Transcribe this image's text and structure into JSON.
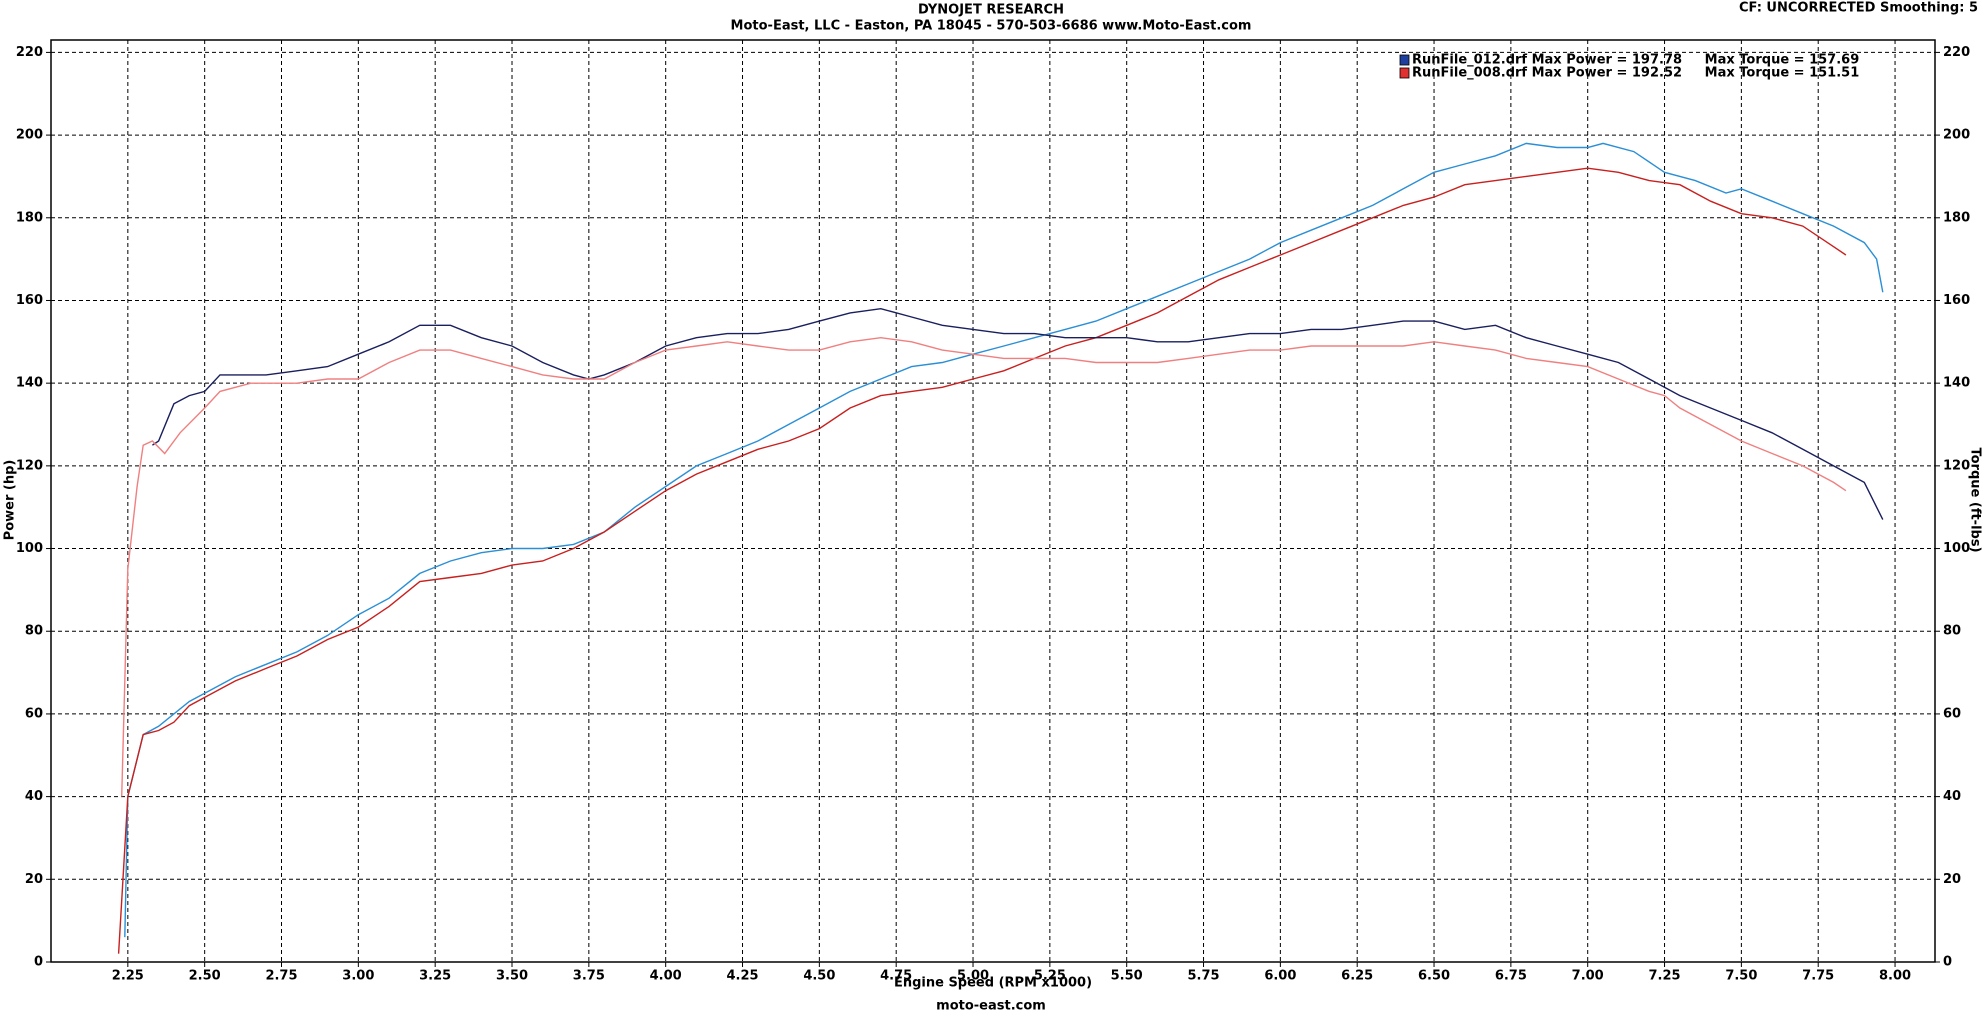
{
  "chart_data": {
    "type": "line",
    "title": "DYNOJET RESEARCH",
    "subtitle": "Moto-East, LLC - Easton, PA 18045 - 570-503-6686 www.Moto-East.com",
    "corner_note": "CF: UNCORRECTED  Smoothing: 5",
    "footer": "moto-east.com",
    "x_label": "Engine Speed (RPM x1000)",
    "y_label": "Power (hp)",
    "y2_label": "Torque (ft-lbs)",
    "legend": [
      {
        "text": "RunFile_012.drf Max Power = 197.78     Max Torque = 157.69",
        "color": "#1f3f9f"
      },
      {
        "text": "RunFile_008.drf Max Power = 192.52     Max Torque = 151.51",
        "color": "#e03030"
      }
    ],
    "grid": true,
    "xlim": [
      2.0,
      8.13
    ],
    "ylim": [
      0,
      223
    ],
    "y2lim": [
      0,
      223
    ],
    "xticks": [
      2.25,
      {
        "value": 2.5,
        "label": "2.50"
      },
      2.75,
      {
        "value": 3,
        "label": "3.00"
      },
      3.25,
      {
        "value": 3.5,
        "label": "3.50"
      },
      3.75,
      {
        "value": 4,
        "label": "4.00"
      },
      4.25,
      {
        "value": 4.5,
        "label": "4.50"
      },
      4.75,
      {
        "value": 5,
        "label": "5.00"
      },
      5.25,
      {
        "value": 5.5,
        "label": "5.50"
      },
      5.75,
      {
        "value": 6,
        "label": "6.00"
      },
      6.25,
      {
        "value": 6.5,
        "label": "6.50"
      },
      6.75,
      {
        "value": 7,
        "label": "7.00"
      },
      7.25,
      {
        "value": 7.5,
        "label": "7.50"
      },
      7.75,
      {
        "value": 8,
        "label": "8.00"
      }
    ],
    "yticks": [
      0,
      20,
      40,
      60,
      80,
      100,
      120,
      140,
      160,
      180,
      200,
      220
    ],
    "y2ticks": [
      0,
      20,
      40,
      60,
      80,
      100,
      120,
      140,
      160,
      180,
      200,
      220
    ],
    "series": [
      {
        "color": "#2a8fd6",
        "x": [
          2.24,
          2.25,
          2.3,
          2.35,
          2.45,
          2.5,
          2.6,
          2.7,
          2.8,
          2.9,
          3.0,
          3.1,
          3.2,
          3.3,
          3.4,
          3.5,
          3.6,
          3.7,
          3.8,
          3.9,
          4.0,
          4.1,
          4.2,
          4.3,
          4.4,
          4.5,
          4.6,
          4.7,
          4.8,
          4.9,
          5.0,
          5.1,
          5.2,
          5.3,
          5.4,
          5.5,
          5.6,
          5.7,
          5.8,
          5.9,
          6.0,
          6.1,
          6.2,
          6.3,
          6.4,
          6.5,
          6.6,
          6.7,
          6.8,
          6.9,
          7.0,
          7.05,
          7.15,
          7.25,
          7.35,
          7.45,
          7.5,
          7.6,
          7.7,
          7.8,
          7.9,
          7.94,
          7.96
        ],
        "values": [
          6,
          40,
          55,
          57,
          63,
          65,
          69,
          72,
          75,
          79,
          84,
          88,
          94,
          97,
          99,
          100,
          100,
          101,
          104,
          110,
          115,
          120,
          123,
          126,
          130,
          134,
          138,
          141,
          144,
          145,
          147,
          149,
          151,
          153,
          155,
          158,
          161,
          164,
          167,
          170,
          174,
          177,
          180,
          183,
          187,
          191,
          193,
          195,
          198,
          197,
          197,
          198,
          196,
          191,
          189,
          186,
          187,
          184,
          181,
          178,
          174,
          170,
          162
        ]
      },
      {
        "color": "#c8201e",
        "x": [
          2.22,
          2.25,
          2.3,
          2.35,
          2.4,
          2.45,
          2.5,
          2.6,
          2.7,
          2.8,
          2.9,
          3.0,
          3.1,
          3.2,
          3.3,
          3.4,
          3.5,
          3.6,
          3.7,
          3.8,
          3.9,
          4.0,
          4.1,
          4.2,
          4.3,
          4.4,
          4.5,
          4.6,
          4.7,
          4.8,
          4.9,
          5.0,
          5.1,
          5.2,
          5.3,
          5.4,
          5.5,
          5.6,
          5.7,
          5.8,
          5.9,
          6.0,
          6.1,
          6.2,
          6.3,
          6.4,
          6.5,
          6.6,
          6.7,
          6.8,
          6.9,
          7.0,
          7.1,
          7.2,
          7.3,
          7.4,
          7.5,
          7.6,
          7.7,
          7.8,
          7.84
        ],
        "values": [
          2,
          40,
          55,
          56,
          58,
          62,
          64,
          68,
          71,
          74,
          78,
          81,
          86,
          92,
          93,
          94,
          96,
          97,
          100,
          104,
          109,
          114,
          118,
          121,
          124,
          126,
          129,
          134,
          137,
          138,
          139,
          141,
          143,
          146,
          149,
          151,
          154,
          157,
          161,
          165,
          168,
          171,
          174,
          177,
          180,
          183,
          185,
          188,
          189,
          190,
          191,
          192,
          191,
          189,
          188,
          184,
          181,
          180,
          178,
          173,
          171
        ]
      },
      {
        "color": "#1a1f5e",
        "axis": "y2",
        "x": [
          2.33,
          2.35,
          2.4,
          2.45,
          2.5,
          2.55,
          2.6,
          2.7,
          2.8,
          2.9,
          3.0,
          3.1,
          3.2,
          3.3,
          3.4,
          3.5,
          3.6,
          3.7,
          3.75,
          3.8,
          3.9,
          4.0,
          4.1,
          4.2,
          4.3,
          4.4,
          4.5,
          4.6,
          4.7,
          4.8,
          4.9,
          5.0,
          5.1,
          5.2,
          5.3,
          5.4,
          5.5,
          5.6,
          5.7,
          5.8,
          5.9,
          6.0,
          6.1,
          6.2,
          6.3,
          6.4,
          6.5,
          6.6,
          6.7,
          6.8,
          6.9,
          7.0,
          7.1,
          7.2,
          7.3,
          7.4,
          7.5,
          7.6,
          7.7,
          7.8,
          7.9,
          7.96
        ],
        "values": [
          125,
          126,
          135,
          137,
          138,
          142,
          142,
          142,
          143,
          144,
          147,
          150,
          154,
          154,
          151,
          149,
          145,
          142,
          141,
          142,
          145,
          149,
          151,
          152,
          152,
          153,
          155,
          157,
          158,
          156,
          154,
          153,
          152,
          152,
          151,
          151,
          151,
          150,
          150,
          151,
          152,
          152,
          153,
          153,
          154,
          155,
          155,
          153,
          154,
          151,
          149,
          147,
          145,
          141,
          137,
          134,
          131,
          128,
          124,
          120,
          116,
          107
        ]
      },
      {
        "color": "#f08080",
        "axis": "y2",
        "x": [
          2.23,
          2.25,
          2.28,
          2.3,
          2.33,
          2.37,
          2.42,
          2.5,
          2.55,
          2.65,
          2.8,
          2.9,
          3.0,
          3.1,
          3.2,
          3.3,
          3.4,
          3.5,
          3.6,
          3.7,
          3.8,
          3.9,
          4.0,
          4.1,
          4.2,
          4.3,
          4.4,
          4.5,
          4.6,
          4.7,
          4.8,
          4.9,
          5.0,
          5.1,
          5.2,
          5.3,
          5.4,
          5.5,
          5.6,
          5.7,
          5.8,
          5.9,
          6.0,
          6.1,
          6.2,
          6.3,
          6.4,
          6.5,
          6.6,
          6.7,
          6.8,
          6.9,
          7.0,
          7.1,
          7.2,
          7.25,
          7.3,
          7.4,
          7.5,
          7.6,
          7.7,
          7.8,
          7.84
        ],
        "values": [
          40,
          95,
          115,
          125,
          126,
          123,
          128,
          134,
          138,
          140,
          140,
          141,
          141,
          145,
          148,
          148,
          146,
          144,
          142,
          141,
          141,
          145,
          148,
          149,
          150,
          149,
          148,
          148,
          150,
          151,
          150,
          148,
          147,
          146,
          146,
          146,
          145,
          145,
          145,
          146,
          147,
          148,
          148,
          149,
          149,
          149,
          149,
          150,
          149,
          148,
          146,
          145,
          144,
          141,
          138,
          137,
          134,
          130,
          126,
          123,
          120,
          116,
          114
        ]
      }
    ]
  }
}
